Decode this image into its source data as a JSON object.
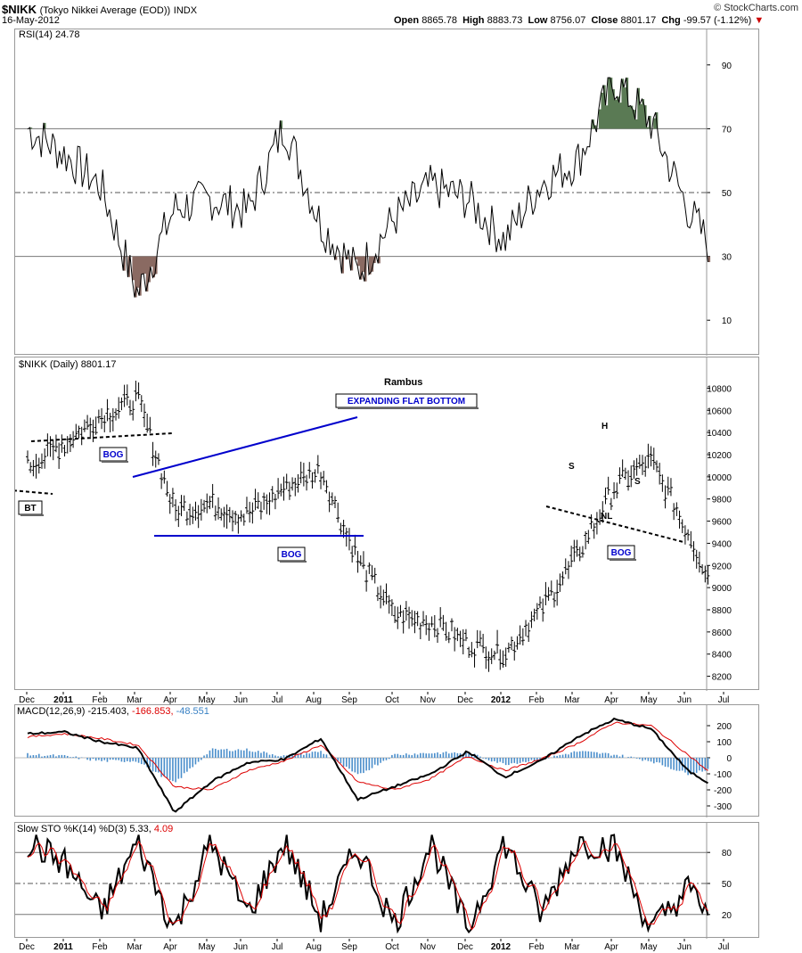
{
  "header": {
    "symbol": "$NIKK",
    "name": "(Tokyo Nikkei Average (EOD))",
    "exchange": "INDX",
    "date": "16-May-2012",
    "open_label": "Open",
    "open": "8865.78",
    "high_label": "High",
    "high": "8883.73",
    "low_label": "Low",
    "low": "8756.07",
    "close_label": "Close",
    "close": "8801.17",
    "chg_label": "Chg",
    "chg": "-99.57 (-1.12%)",
    "brand": "© StockCharts.com"
  },
  "colors": {
    "up_fill": "#5a7a54",
    "down_fill": "#8a6a62",
    "trend_line": "#0000cc",
    "signal": "#dd0000",
    "hist": "#4a8ecb"
  },
  "rsi_panel": {
    "label": "RSI(14)",
    "value": "24.78"
  },
  "price_panel": {
    "label": "$NIKK (Daily)",
    "value": "8801.17",
    "title": "Rambus"
  },
  "macd_panel": {
    "label": "MACD(12,26,9)",
    "v1": "-215.403,",
    "v2": "-166.853,",
    "v3": "-48.551"
  },
  "sto_panel": {
    "label": "Slow STO %K(14) %D(3)",
    "v1": "5.33,",
    "v2": "4.09"
  },
  "annotations": {
    "expanding": "EXPANDING FLAT BOTTOM",
    "bog": "BOG",
    "bt": "BT",
    "s": "S",
    "h": "H",
    "nl": "NL"
  },
  "chart_data": [
    {
      "type": "line",
      "title": "RSI(14) 24.78",
      "ylim": [
        0,
        100
      ],
      "yticks": [
        10,
        30,
        50,
        70,
        90
      ],
      "reference_lines": [
        30,
        50,
        70
      ],
      "x": [
        "Dec",
        "2011",
        "Feb",
        "Mar",
        "Apr",
        "May",
        "Jun",
        "Jul",
        "Aug",
        "Sep",
        "Oct",
        "Nov",
        "Dec",
        "2012",
        "Feb",
        "Mar",
        "Apr",
        "May",
        "Jun",
        "Jul"
      ],
      "series": [
        {
          "values": [
            70,
            62,
            52,
            18,
            45,
            48,
            44,
            71,
            40,
            25,
            42,
            52,
            48,
            35,
            53,
            60,
            85,
            72,
            45,
            25
          ]
        }
      ]
    },
    {
      "type": "bar",
      "title": "$NIKK (Daily) 8801.17",
      "ylim": [
        8100,
        10900
      ],
      "yticks": [
        8200,
        8400,
        8600,
        8800,
        9000,
        9200,
        9400,
        9600,
        9800,
        10000,
        10200,
        10400,
        10600,
        10800
      ],
      "x": [
        "Dec",
        "2011",
        "Feb",
        "Mar",
        "Apr",
        "May",
        "Jun",
        "Jul",
        "Aug",
        "Sep",
        "Oct",
        "Nov",
        "Dec",
        "2012",
        "Feb",
        "Mar",
        "Apr",
        "May",
        "Jun",
        "Jul"
      ],
      "series": [
        {
          "values": [
            10100,
            10300,
            10550,
            10700,
            9700,
            9750,
            9650,
            9900,
            10050,
            9250,
            8750,
            8700,
            8500,
            8400,
            8800,
            9300,
            9900,
            10150,
            9500,
            8800
          ]
        }
      ]
    },
    {
      "type": "line",
      "title": "MACD(12,26,9) -215.403, -166.853, -48.551",
      "ylim": [
        -350,
        250
      ],
      "yticks": [
        -300,
        -200,
        -100,
        0,
        100,
        200
      ],
      "x": [
        "Dec",
        "2011",
        "Feb",
        "Mar",
        "Apr",
        "May",
        "Jun",
        "Jul",
        "Aug",
        "Sep",
        "Oct",
        "Nov",
        "Dec",
        "2012",
        "Feb",
        "Mar",
        "Apr",
        "May",
        "Jun",
        "Jul"
      ],
      "series": [
        {
          "values": [
            150,
            160,
            100,
            60,
            -340,
            -150,
            -30,
            -10,
            120,
            -260,
            -180,
            -100,
            40,
            -120,
            -20,
            130,
            240,
            180,
            -80,
            -215
          ]
        },
        {
          "values": [
            130,
            150,
            120,
            80,
            -180,
            -200,
            -80,
            -20,
            80,
            -150,
            -200,
            -130,
            10,
            -80,
            -10,
            90,
            220,
            200,
            20,
            -167
          ]
        },
        {
          "values": [
            20,
            10,
            -20,
            -20,
            -160,
            50,
            50,
            10,
            40,
            -110,
            20,
            30,
            30,
            -40,
            -10,
            40,
            20,
            -20,
            -100,
            -49
          ]
        }
      ]
    },
    {
      "type": "line",
      "title": "Slow STO %K(14) %D(3) 5.33, 4.09",
      "ylim": [
        0,
        100
      ],
      "yticks": [
        20,
        50,
        80
      ],
      "reference_lines": [
        20,
        50,
        80
      ],
      "x": [
        "Dec",
        "2011",
        "Feb",
        "Mar",
        "Apr",
        "May",
        "Jun",
        "Jul",
        "Aug",
        "Sep",
        "Oct",
        "Nov",
        "Dec",
        "2012",
        "Feb",
        "Mar",
        "Apr",
        "May",
        "Jun",
        "Jul"
      ],
      "series": [
        {
          "values": [
            90,
            70,
            20,
            90,
            5,
            90,
            20,
            90,
            15,
            85,
            10,
            90,
            5,
            90,
            20,
            90,
            85,
            5,
            45,
            5
          ]
        },
        {
          "values": [
            85,
            75,
            30,
            80,
            10,
            80,
            30,
            85,
            20,
            80,
            15,
            85,
            10,
            85,
            25,
            85,
            80,
            10,
            35,
            4
          ]
        }
      ]
    }
  ],
  "x_axis": [
    "Dec",
    "2011",
    "Feb",
    "Mar",
    "Apr",
    "May",
    "Jun",
    "Jul",
    "Aug",
    "Sep",
    "Oct",
    "Nov",
    "Dec",
    "2012",
    "Feb",
    "Mar",
    "Apr",
    "May",
    "Jun",
    "Jul"
  ]
}
